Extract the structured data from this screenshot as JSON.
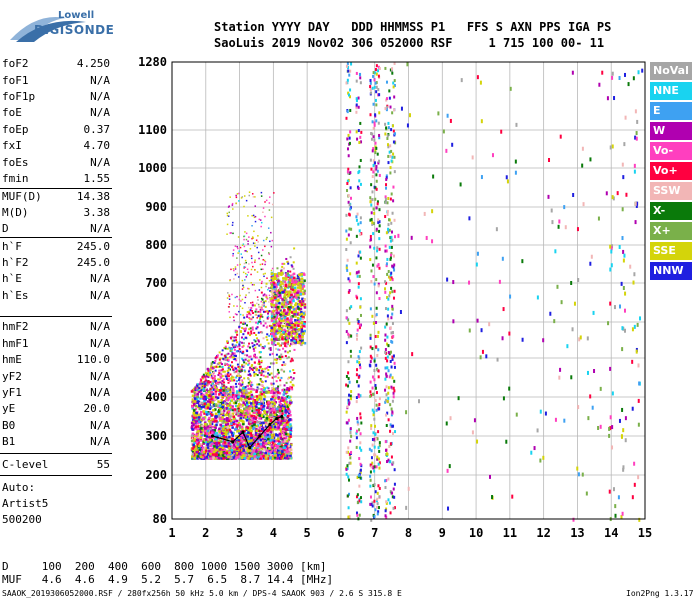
{
  "logo": {
    "line1": "Lowell",
    "line2": "DIGISONDE"
  },
  "header": {
    "row1": "Station YYYY DAY   DDD HHMMSS P1   FFS S AXN PPS IGA PS",
    "row2": "SaoLuis 2019 Nov02 306 052000 RSF     1 715 100 00- 11"
  },
  "params": [
    {
      "name": "foF2",
      "value": "4.250"
    },
    {
      "name": "foF1",
      "value": "N/A"
    },
    {
      "name": "foF1p",
      "value": "N/A"
    },
    {
      "name": "foE",
      "value": "N/A"
    },
    {
      "name": "foEp",
      "value": "0.37"
    },
    {
      "name": "fxI",
      "value": "4.70"
    },
    {
      "name": "foEs",
      "value": "N/A"
    },
    {
      "name": "fmin",
      "value": "1.55"
    },
    {
      "name": "MUF(D)",
      "value": "14.38"
    },
    {
      "name": "M(D)",
      "value": "3.38"
    },
    {
      "name": "D",
      "value": "N/A"
    },
    {
      "name": "h`F",
      "value": "245.0"
    },
    {
      "name": "h`F2",
      "value": "245.0"
    },
    {
      "name": "h`E",
      "value": "N/A"
    },
    {
      "name": "h`Es",
      "value": "N/A"
    },
    {
      "name": "hmF2",
      "value": "N/A"
    },
    {
      "name": "hmF1",
      "value": "N/A"
    },
    {
      "name": "hmE",
      "value": "110.0"
    },
    {
      "name": "yF2",
      "value": "N/A"
    },
    {
      "name": "yF1",
      "value": "N/A"
    },
    {
      "name": "yE",
      "value": "20.0"
    },
    {
      "name": "B0",
      "value": "N/A"
    },
    {
      "name": "B1",
      "value": "N/A"
    },
    {
      "name": "C-level",
      "value": "55"
    }
  ],
  "auto": {
    "line1": "Auto:",
    "line2": "Artist5",
    "line3": "500200"
  },
  "legend": [
    {
      "label": "NoVal",
      "color": "#a6a6a6"
    },
    {
      "label": "NNE",
      "color": "#19d3f0"
    },
    {
      "label": "E",
      "color": "#3ea1f2"
    },
    {
      "label": "W",
      "color": "#b000b0"
    },
    {
      "label": "Vo-",
      "color": "#ff3fbf"
    },
    {
      "label": "Vo+",
      "color": "#ff0040"
    },
    {
      "label": "SSW",
      "color": "#f2b6b6"
    },
    {
      "label": "X-",
      "color": "#0a7a0a"
    },
    {
      "label": "X+",
      "color": "#7ab04a"
    },
    {
      "label": "SSE",
      "color": "#d4d40a"
    },
    {
      "label": "NNW",
      "color": "#1f1fe0"
    }
  ],
  "footer": {
    "d_row": "D     100  200  400  600  800 1000 1500 3000 [km]",
    "muf_row": "MUF   4.6  4.6  4.9  5.2  5.7  6.5  8.7 14.4 [MHz]",
    "info": "SAAOK_2019306052000.RSF / 280fx256h 50 kHz 5.0 km / DPS-4 SAAOK 903 / 2.6 S 315.8 E",
    "version": "Ion2Png 1.3.17"
  },
  "chart_data": {
    "type": "scatter",
    "title": "",
    "xlabel": "",
    "ylabel": "",
    "xlim": [
      1,
      15
    ],
    "ylim": [
      80,
      1280
    ],
    "x_ticks": [
      "1",
      "2",
      "3",
      "4",
      "5",
      "6",
      "7",
      "8",
      "9",
      "10",
      "11",
      "12",
      "13",
      "14",
      "15"
    ],
    "y_ticks": [
      "80",
      "200",
      "300",
      "400",
      "500",
      "600",
      "700",
      "800",
      "900",
      "1000",
      "1100",
      "1280"
    ],
    "grid": true,
    "legend_position": "right",
    "trace": {
      "name": "",
      "points": [
        [
          2.2,
          300
        ],
        [
          2.8,
          285
        ],
        [
          3.1,
          310
        ],
        [
          3.3,
          270
        ],
        [
          3.6,
          300
        ],
        [
          3.9,
          330
        ],
        [
          4.1,
          345
        ],
        [
          4.25,
          350
        ]
      ]
    }
  }
}
